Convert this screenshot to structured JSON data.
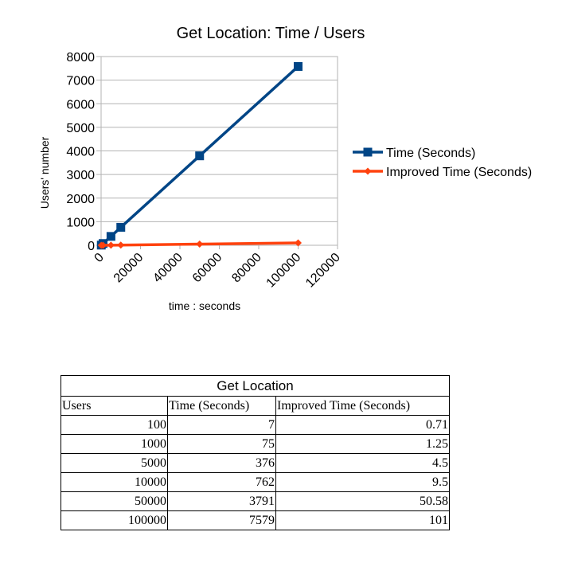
{
  "chart_data": {
    "type": "line",
    "title": "Get Location: Time / Users",
    "xlabel": "time : seconds",
    "ylabel": "Users' number",
    "xlim": [
      0,
      120000
    ],
    "ylim": [
      0,
      8000
    ],
    "x_ticks": [
      "0",
      "20000",
      "40000",
      "60000",
      "80000",
      "100000",
      "120000"
    ],
    "y_ticks": [
      "0",
      "1000",
      "2000",
      "3000",
      "4000",
      "5000",
      "6000",
      "7000",
      "8000"
    ],
    "grid": "horizontal",
    "legend_position": "right",
    "x": [
      100,
      1000,
      5000,
      10000,
      50000,
      100000
    ],
    "series": [
      {
        "name": "Time (Seconds)",
        "values": [
          7,
          75,
          376,
          762,
          3791,
          7579
        ],
        "color": "#004586",
        "marker": "square"
      },
      {
        "name": "Improved Time (Seconds)",
        "values": [
          0.71,
          1.25,
          4.5,
          9.5,
          50.58,
          101
        ],
        "color": "#ff420e",
        "marker": "diamond"
      }
    ]
  },
  "table": {
    "caption": "Get Location",
    "headers": [
      "Users",
      "Time (Seconds)",
      "Improved Time (Seconds)"
    ],
    "rows": [
      [
        "100",
        "7",
        "0.71"
      ],
      [
        "1000",
        "75",
        "1.25"
      ],
      [
        "5000",
        "376",
        "4.5"
      ],
      [
        "10000",
        "762",
        "9.5"
      ],
      [
        "50000",
        "3791",
        "50.58"
      ],
      [
        "100000",
        "7579",
        "101"
      ]
    ]
  }
}
